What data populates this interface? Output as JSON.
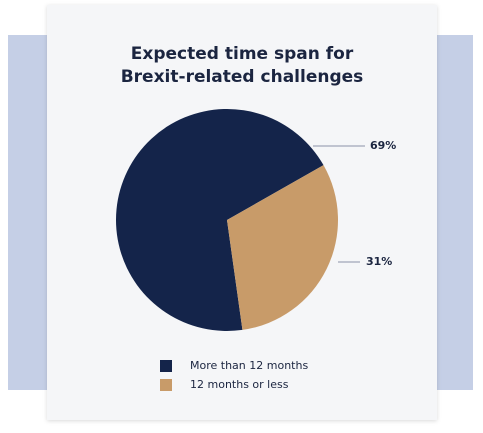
{
  "chart_data": {
    "type": "pie",
    "title": [
      "Expected time span for",
      "Brexit-related challenges"
    ],
    "series": [
      {
        "name": "More than 12 months",
        "color": "#14244a",
        "values": [
          69
        ],
        "value_labels": [
          "69%"
        ]
      },
      {
        "name": "12 months or less",
        "color": "#c89b69",
        "values": [
          31
        ],
        "value_labels": [
          "31%"
        ]
      }
    ]
  }
}
